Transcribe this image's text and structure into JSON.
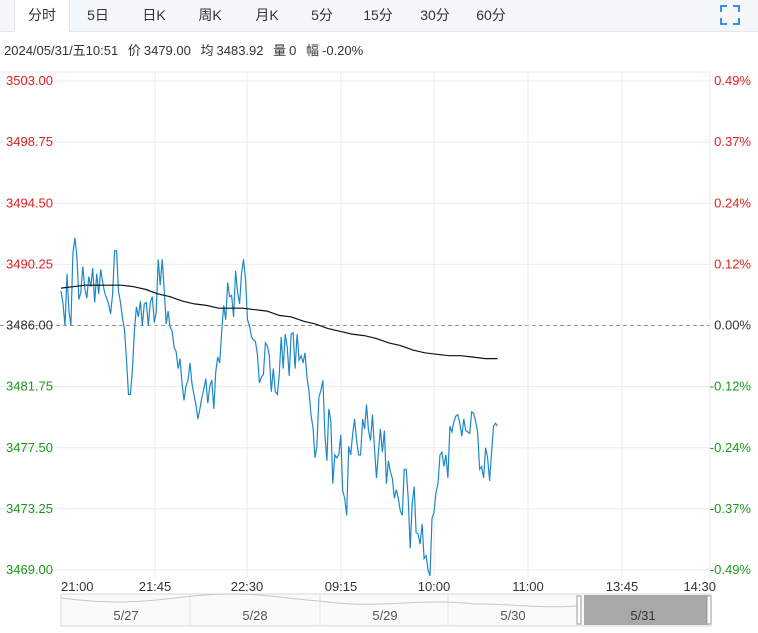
{
  "tabs": [
    {
      "label": "分时",
      "active": true
    },
    {
      "label": "5日",
      "active": false
    },
    {
      "label": "日K",
      "active": false
    },
    {
      "label": "周K",
      "active": false
    },
    {
      "label": "月K",
      "active": false
    },
    {
      "label": "5分",
      "active": false
    },
    {
      "label": "15分",
      "active": false
    },
    {
      "label": "30分",
      "active": false
    },
    {
      "label": "60分",
      "active": false
    }
  ],
  "info": {
    "datetime": "2024/05/31/五10:51",
    "price_label": "价",
    "price": "3479.00",
    "avg_label": "均",
    "avg": "3483.92",
    "vol_label": "量",
    "vol": "0",
    "chg_label": "幅",
    "chg": "-0.20%"
  },
  "colors": {
    "up": "#e02020",
    "down": "#1a9a1a",
    "price_line": "#1e88c7",
    "avg_line": "#111111",
    "grid": "#ebebeb",
    "base": "#9a9a9a",
    "nav_selected": "#a9a9a9"
  },
  "chart_data": {
    "type": "line",
    "y_ticks": [
      "3503.00",
      "3498.75",
      "3494.50",
      "3490.25",
      "3486.00",
      "3481.75",
      "3477.50",
      "3473.25",
      "3469.00"
    ],
    "y_pct_ticks": [
      "0.49%",
      "0.37%",
      "0.24%",
      "0.12%",
      "0.00%",
      "-0.12%",
      "-0.24%",
      "-0.37%",
      "-0.49%"
    ],
    "x_ticks": [
      "21:00",
      "21:45",
      "22:30",
      "09:15",
      "10:00",
      "11:00",
      "13:45",
      "14:30"
    ],
    "ylim": [
      3469.0,
      3503.0
    ],
    "base": 3486.0,
    "series": [
      {
        "values": [
          3488.4,
          3487.5,
          3486.0,
          3489.6,
          3487.0,
          3486.0,
          3491.0,
          3492.1,
          3490.8,
          3487.8,
          3488.3,
          3490.1,
          3488.6,
          3487.9,
          3489.4,
          3488.7,
          3490.0,
          3487.6,
          3489.6,
          3488.2,
          3489.9,
          3489.0,
          3488.3,
          3487.9,
          3487.5,
          3486.8,
          3488.2,
          3491.2,
          3491.2,
          3488.4,
          3487.6,
          3486.5,
          3485.7,
          3483.6,
          3481.2,
          3481.2,
          3482.9,
          3485.6,
          3487.3,
          3486.6,
          3487.7,
          3486.0,
          3487.5,
          3487.6,
          3486.0,
          3487.6,
          3488.0,
          3486.2,
          3486.9,
          3490.6,
          3488.8,
          3490.6,
          3488.5,
          3486.1,
          3487.0,
          3485.9,
          3485.6,
          3484.5,
          3484.2,
          3483.0,
          3483.7,
          3482.0,
          3480.8,
          3481.8,
          3482.2,
          3483.4,
          3482.0,
          3481.2,
          3480.5,
          3479.5,
          3480.2,
          3481.0,
          3481.6,
          3482.3,
          3480.6,
          3481.8,
          3482.2,
          3480.2,
          3482.8,
          3483.8,
          3483.4,
          3485.6,
          3487.4,
          3486.4,
          3489.0,
          3488.0,
          3488.1,
          3486.6,
          3489.8,
          3488.3,
          3487.5,
          3489.6,
          3490.6,
          3489.2,
          3486.4,
          3486.0,
          3485.2,
          3485.0,
          3484.9,
          3484.0,
          3482.0,
          3482.4,
          3482.6,
          3484.8,
          3484.6,
          3483.9,
          3481.4,
          3483.0,
          3481.4,
          3481.2,
          3482.5,
          3485.2,
          3483.0,
          3485.4,
          3484.5,
          3482.5,
          3485.4,
          3485.5,
          3483.0,
          3485.4,
          3483.6,
          3483.9,
          3483.4,
          3484.1,
          3482.4,
          3481.4,
          3479.8,
          3478.9,
          3476.8,
          3477.6,
          3481.0,
          3481.5,
          3482.2,
          3478.4,
          3476.6,
          3480.2,
          3479.4,
          3475.0,
          3477.0,
          3476.8,
          3477.0,
          3478.4,
          3474.5,
          3474.0,
          3472.8,
          3477.6,
          3477.0,
          3478.5,
          3479.5,
          3478.0,
          3477.0,
          3477.0,
          3479.5,
          3478.8,
          3480.5,
          3478.7,
          3478.0,
          3479.8,
          3477.4,
          3475.4,
          3477.2,
          3478.8,
          3477.2,
          3478.7,
          3475.0,
          3476.6,
          3475.8,
          3475.4,
          3474.0,
          3474.6,
          3474.0,
          3473.1,
          3472.8,
          3476.0,
          3476.0,
          3474.0,
          3470.5,
          3473.6,
          3474.8,
          3471.6,
          3471.5,
          3470.8,
          3472.2,
          3469.8,
          3470.0,
          3469.0,
          3468.6,
          3472.6,
          3473.0,
          3474.4,
          3475.0,
          3477.0,
          3477.2,
          3476.2,
          3477.0,
          3475.4,
          3479.0,
          3478.6,
          3479.3,
          3479.7,
          3479.8,
          3479.2,
          3478.3,
          3479.5,
          3478.7,
          3478.6,
          3478.5,
          3480.0,
          3479.9,
          3479.3,
          3478.6,
          3476.0,
          3476.2,
          3475.4,
          3477.5,
          3476.8,
          3475.2,
          3477.1,
          3479.0,
          3479.2,
          3479.0
        ]
      },
      {
        "values": [
          3488.6,
          3488.7,
          3488.8,
          3488.8,
          3488.8,
          3488.8,
          3488.7,
          3488.5,
          3488.2,
          3488.0,
          3487.7,
          3487.5,
          3487.4,
          3487.2,
          3487.2,
          3487.2,
          3487.1,
          3487.0,
          3486.7,
          3486.6,
          3486.3,
          3486.1,
          3485.8,
          3485.6,
          3485.4,
          3485.3,
          3485.1,
          3484.8,
          3484.6,
          3484.3,
          3484.1,
          3484.0,
          3483.9,
          3483.9,
          3483.8,
          3483.7,
          3483.7
        ]
      }
    ]
  },
  "navigator": {
    "labels": [
      "5/27",
      "5/28",
      "5/29",
      "5/30",
      "5/31"
    ]
  }
}
